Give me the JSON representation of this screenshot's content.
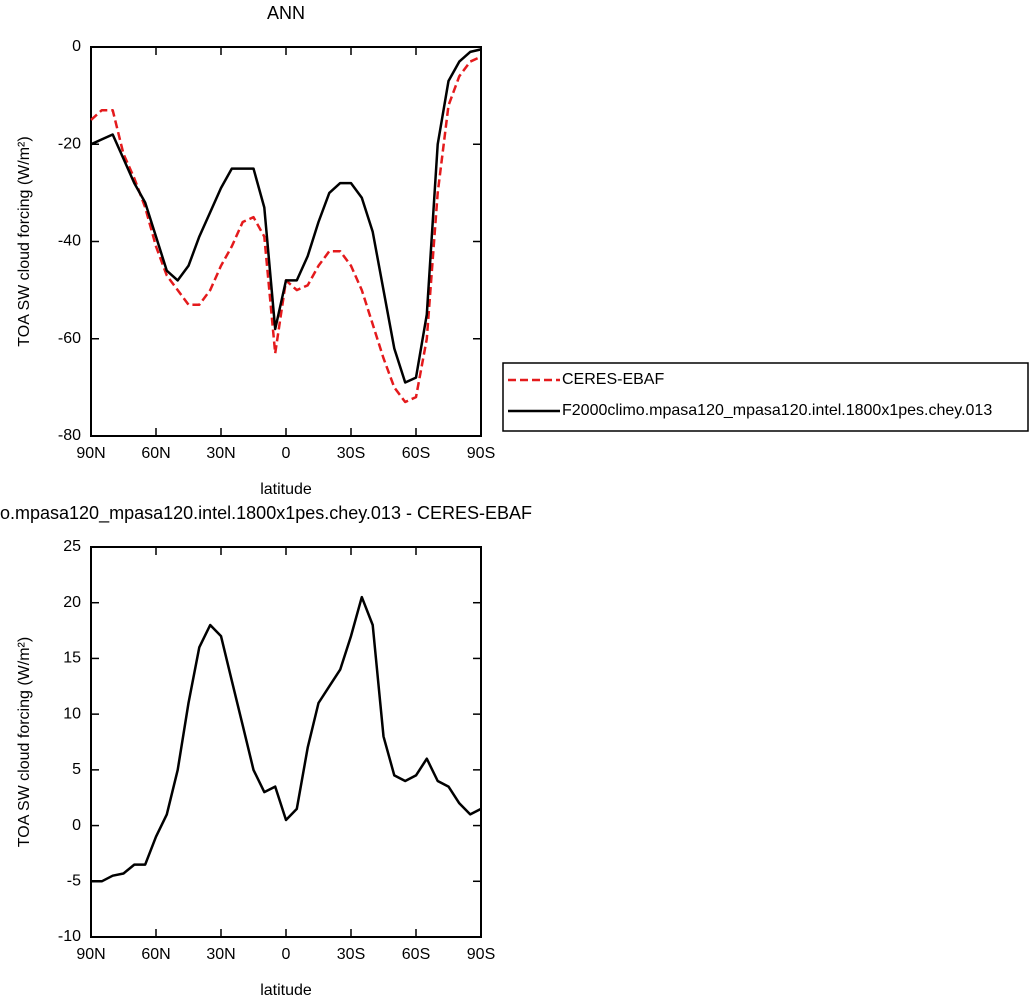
{
  "chart_data": [
    {
      "type": "line",
      "title": "ANN",
      "xlabel": "latitude",
      "ylabel": "TOA SW cloud forcing (W/m²)",
      "xlim": [
        90,
        -90
      ],
      "xticks": [
        {
          "value": 90,
          "label": "90N"
        },
        {
          "value": 60,
          "label": "60N"
        },
        {
          "value": 30,
          "label": "30N"
        },
        0,
        {
          "value": -30,
          "label": "30S"
        },
        {
          "value": -60,
          "label": "60S"
        },
        {
          "value": -90,
          "label": "90S"
        }
      ],
      "ylim": [
        -80,
        0
      ],
      "yticks": [
        -80,
        -60,
        -40,
        -20,
        0
      ],
      "legend": "right",
      "x": [
        90,
        85,
        80,
        75,
        70,
        65,
        60,
        55,
        50,
        45,
        40,
        35,
        30,
        25,
        20,
        15,
        10,
        5,
        0,
        -5,
        -10,
        -15,
        -20,
        -25,
        -30,
        -35,
        -40,
        -45,
        -50,
        -55,
        -60,
        -65,
        -70,
        -75,
        -80,
        -85,
        -90
      ],
      "series": [
        {
          "name": "CERES-EBAF",
          "color": "#e41a1c",
          "linestyle": "dashed",
          "values": [
            -15,
            -13,
            -13,
            -22,
            -27,
            -33,
            -41,
            -47,
            -50,
            -53,
            -53,
            -50,
            -45,
            -41,
            -36,
            -35,
            -39,
            -63,
            -48,
            -50,
            -49,
            -45,
            -42,
            -42,
            -45,
            -50,
            -57,
            -64,
            -70,
            -73,
            -72,
            -60,
            -30,
            -12,
            -6,
            -3,
            -2
          ]
        },
        {
          "name": "F2000climo.mpasa120_mpasa120.intel.1800x1pes.chey.013",
          "color": "#000000",
          "linestyle": "solid",
          "values": [
            -20,
            -19,
            -18,
            -23,
            -28,
            -32,
            -39,
            -46,
            -48,
            -45,
            -39,
            -34,
            -29,
            -25,
            -25,
            -25,
            -33,
            -58,
            -48,
            -48,
            -43,
            -36,
            -30,
            -28,
            -28,
            -31,
            -38,
            -50,
            -62,
            -69,
            -68,
            -55,
            -20,
            -7,
            -3,
            -1,
            -0.5
          ]
        }
      ]
    },
    {
      "type": "line",
      "title": "o.mpasa120_mpasa120.intel.1800x1pes.chey.013 - CERES-EBAF",
      "xlabel": "latitude",
      "ylabel": "TOA SW cloud forcing (W/m²)",
      "xlim": [
        90,
        -90
      ],
      "xticks": [
        {
          "value": 90,
          "label": "90N"
        },
        {
          "value": 60,
          "label": "60N"
        },
        {
          "value": 30,
          "label": "30N"
        },
        0,
        {
          "value": -30,
          "label": "30S"
        },
        {
          "value": -60,
          "label": "60S"
        },
        {
          "value": -90,
          "label": "90S"
        }
      ],
      "ylim": [
        -10,
        25
      ],
      "yticks": [
        -10,
        -5,
        0,
        5,
        10,
        15,
        20,
        25
      ],
      "x": [
        90,
        85,
        80,
        75,
        70,
        65,
        60,
        55,
        50,
        45,
        40,
        35,
        30,
        25,
        20,
        15,
        10,
        5,
        0,
        -5,
        -10,
        -15,
        -20,
        -25,
        -30,
        -35,
        -40,
        -45,
        -50,
        -55,
        -60,
        -65,
        -70,
        -75,
        -80,
        -85,
        -90
      ],
      "series": [
        {
          "color": "#000000",
          "linestyle": "solid",
          "values": [
            -5,
            -5,
            -4.5,
            -4.3,
            -3.5,
            -3.5,
            -1,
            1,
            5,
            11,
            16,
            18,
            17,
            13,
            9,
            5,
            3,
            3.5,
            0.5,
            1.5,
            7,
            11,
            12.5,
            14,
            17,
            20.5,
            18,
            8,
            4.5,
            4,
            4.5,
            6,
            4,
            3.5,
            2,
            1,
            1.5
          ]
        }
      ]
    }
  ]
}
